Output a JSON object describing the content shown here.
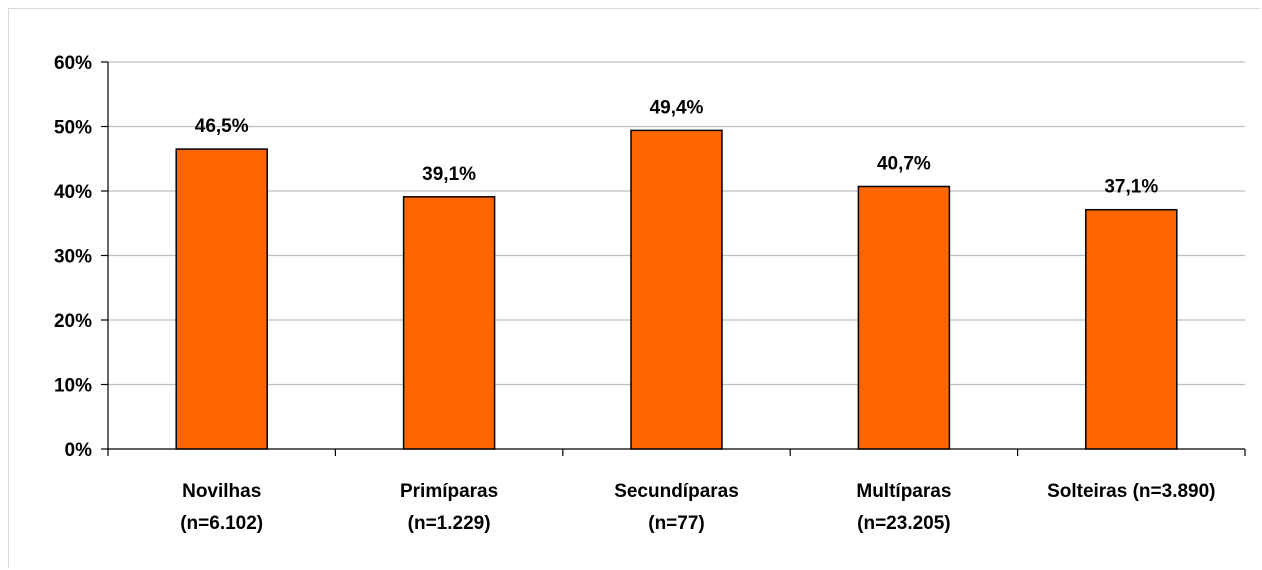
{
  "chart_data": {
    "type": "bar",
    "categories": [
      [
        "Novilhas",
        "(n=6.102)"
      ],
      [
        "Primíparas",
        "(n=1.229)"
      ],
      [
        "Secundíparas",
        "(n=77)"
      ],
      [
        "Multíparas",
        "(n=23.205)"
      ],
      [
        "Solteiras (n=3.890)"
      ]
    ],
    "values": [
      46.5,
      39.1,
      49.4,
      40.7,
      37.1
    ],
    "data_labels": [
      "46,5%",
      "39,1%",
      "49,4%",
      "40,7%",
      "37,1%"
    ],
    "yticks": [
      "0%",
      "10%",
      "20%",
      "30%",
      "40%",
      "50%",
      "60%"
    ],
    "ylim": [
      0,
      60
    ],
    "grid": true,
    "bar_color": "#ff6600",
    "bar_border": "#000000",
    "grid_color": "#bfbfbf"
  }
}
